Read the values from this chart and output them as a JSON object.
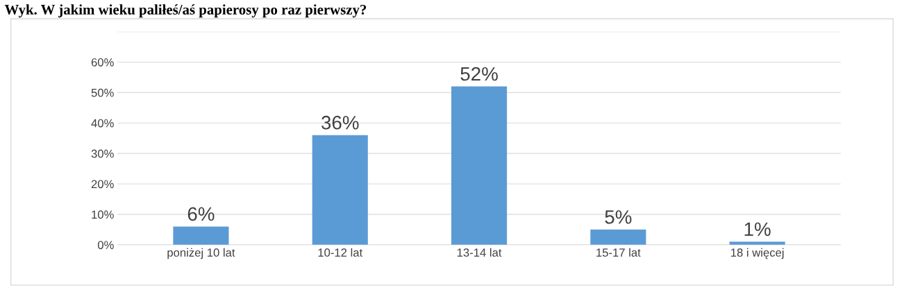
{
  "chart_data": {
    "type": "bar",
    "title": "Wyk. W jakim wieku paliłeś/aś papierosy po raz pierwszy?",
    "categories": [
      "poniżej 10 lat",
      "10-12 lat",
      "13-14 lat",
      "15-17 lat",
      "18 i więcej"
    ],
    "values": [
      6,
      36,
      52,
      5,
      1
    ],
    "color": "#5b9bd5",
    "value_labels": [
      "6%",
      "36%",
      "52%",
      "5%",
      "1%"
    ],
    "ylim": [
      0,
      70
    ],
    "yticks": [
      {
        "value": 0,
        "label": "0%"
      },
      {
        "value": 10,
        "label": "10%"
      },
      {
        "value": 20,
        "label": "20%"
      },
      {
        "value": 30,
        "label": "30%"
      },
      {
        "value": 40,
        "label": "40%"
      },
      {
        "value": 50,
        "label": "50%"
      },
      {
        "value": 60,
        "label": "60%"
      },
      {
        "value": 70,
        "label": null
      }
    ],
    "grid": "y",
    "legend": false
  }
}
